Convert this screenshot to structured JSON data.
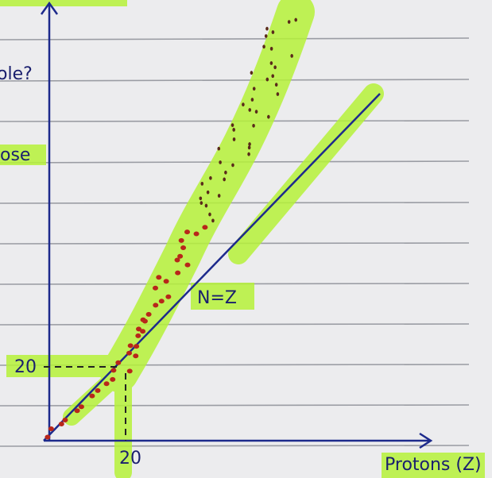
{
  "labels": {
    "top_left": "ole?",
    "mid_left": "ose",
    "y_tick": "20",
    "x_tick": "20",
    "line_label": "N=Z",
    "x_axis": "Protons (Z)"
  }
}
